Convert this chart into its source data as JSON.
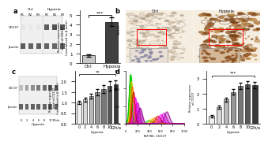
{
  "panel_a_bar": {
    "categories": [
      "Ctrl",
      "Hypoxia"
    ],
    "values": [
      0.8,
      4.3
    ],
    "errors": [
      0.12,
      0.45
    ],
    "bar_colors": [
      "#c8c8c8",
      "#404040"
    ],
    "ylabel": "Relative expression\nlevel of CD137\n(normalized to β-actin)",
    "significance": "***",
    "ylim": [
      0,
      5.5
    ],
    "yticks": [
      0,
      1,
      2,
      3,
      4,
      5
    ]
  },
  "panel_c_bar": {
    "categories": [
      "0",
      "2",
      "4",
      "6",
      "8",
      "10",
      "12h/a"
    ],
    "values": [
      1.0,
      1.15,
      1.3,
      1.5,
      1.65,
      1.8,
      1.85
    ],
    "errors": [
      0.08,
      0.1,
      0.12,
      0.15,
      0.18,
      0.22,
      0.2
    ],
    "bar_colors": [
      "#f0f0f0",
      "#d8d8d8",
      "#b8b8b8",
      "#989898",
      "#787878",
      "#585858",
      "#383838"
    ],
    "ylabel": "Relative expression\nlevel of CD137\n(normalized to β-actin)",
    "significance": "**",
    "ylim": [
      0,
      2.5
    ],
    "yticks": [
      0,
      0.5,
      1.0,
      1.5,
      2.0
    ],
    "xlabel_bottom": "Hypoxia"
  },
  "panel_d_bar": {
    "categories": [
      "0",
      "2",
      "4",
      "6",
      "8",
      "10",
      "12h/a"
    ],
    "values": [
      0.5,
      1.1,
      1.6,
      2.1,
      2.5,
      2.6,
      2.55
    ],
    "errors": [
      0.08,
      0.12,
      0.15,
      0.18,
      0.22,
      0.25,
      0.22
    ],
    "bar_colors": [
      "#f0f0f0",
      "#d8d8d8",
      "#b8b8b8",
      "#989898",
      "#787878",
      "#585858",
      "#383838"
    ],
    "ylabel": "Relative expression\nof CD137",
    "significance": "***",
    "ylim": [
      0,
      3.5
    ],
    "yticks": [
      0,
      1,
      2,
      3
    ],
    "xlabel_bottom": "Hypoxia"
  },
  "wb_a": {
    "ctrl_intensities_cd137": [
      0.12,
      0.1,
      0.11,
      0.75,
      0.8,
      0.78
    ],
    "ctrl_intensities_actin": [
      0.75,
      0.72,
      0.74,
      0.73,
      0.71,
      0.74
    ],
    "lane_labels_top": [
      "R1",
      "R2",
      "R3",
      "R1",
      "R2",
      "R3"
    ],
    "group_labels": [
      "Ctrl",
      "Hypoxia"
    ],
    "row_labels": [
      "CD137",
      "β-actin"
    ]
  },
  "wb_c": {
    "cd137_intensities": [
      0.3,
      0.42,
      0.52,
      0.6,
      0.68,
      0.74,
      0.8
    ],
    "actin_intensities": [
      0.72,
      0.71,
      0.73,
      0.72,
      0.71,
      0.73,
      0.72
    ],
    "lane_labels": [
      "0",
      "2",
      "4",
      "6",
      "8",
      "10",
      "12h/a"
    ],
    "row_labels": [
      "CD137",
      "β-actin"
    ],
    "xlabel": "Hypoxia"
  },
  "flow_colors": [
    "#00cc00",
    "#ffcc00",
    "#ff6600",
    "#cc0000",
    "#ff00ff",
    "#cc00cc",
    "#990099"
  ],
  "bg_color": "#ffffff",
  "panel_label_fontsize": 6,
  "tick_fontsize": 4,
  "label_fontsize": 4
}
